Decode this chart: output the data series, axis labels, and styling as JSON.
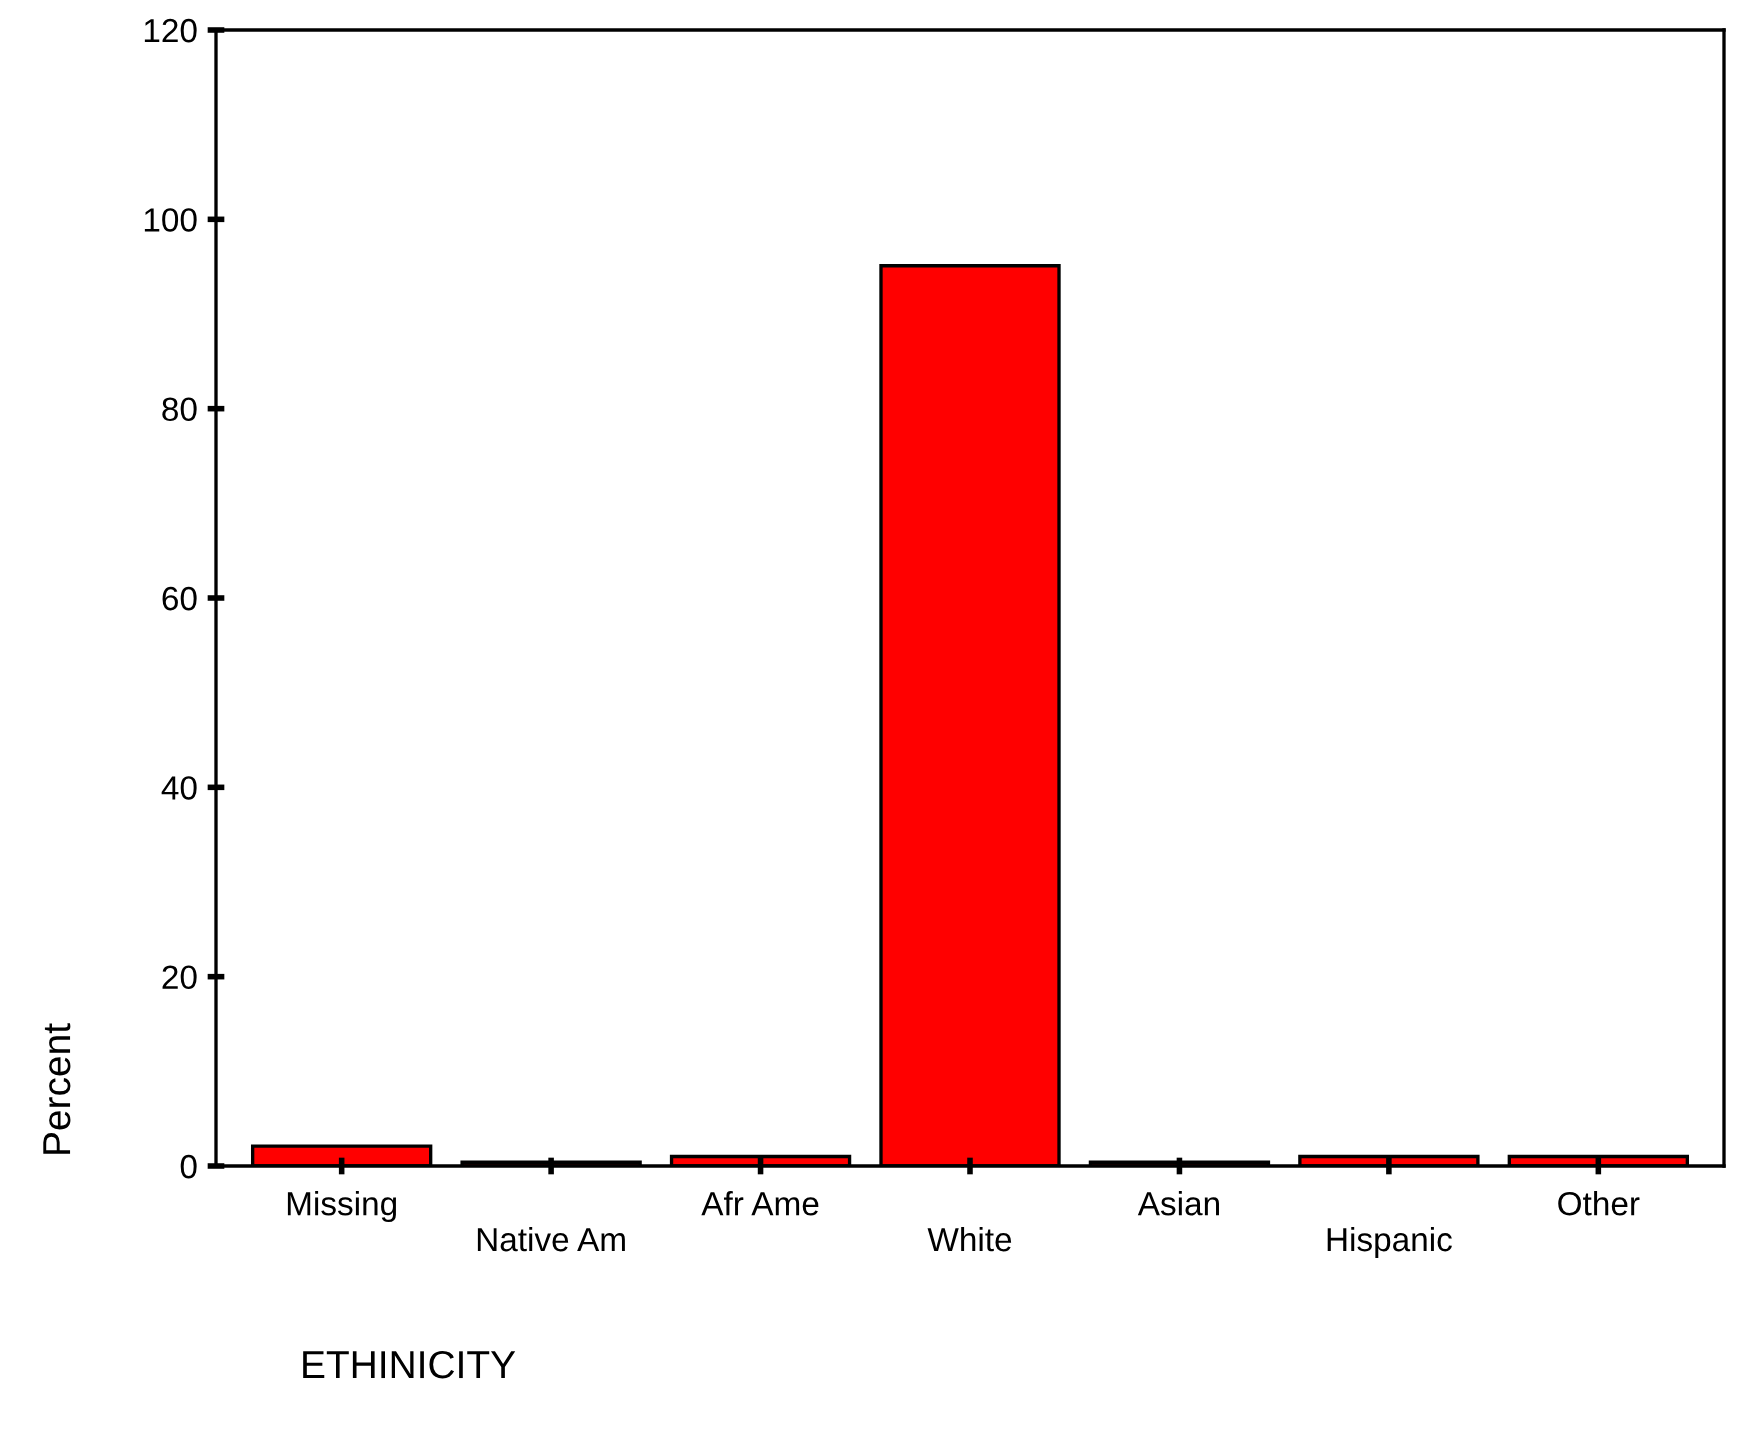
{
  "chart_data": {
    "type": "bar",
    "xlabel": "ETHINICITY",
    "ylabel": "Percent",
    "categories": [
      "Missing",
      "Native Am",
      "Afr Ame",
      "White",
      "Asian",
      "Hispanic",
      "Other"
    ],
    "values": [
      2.1,
      0.4,
      1.0,
      95.1,
      0.4,
      1.0,
      1.0
    ],
    "color": "#ff0000",
    "ylim": [
      0,
      120
    ],
    "yticks": [
      0,
      20,
      40,
      60,
      80,
      100,
      120
    ],
    "grid": false
  }
}
